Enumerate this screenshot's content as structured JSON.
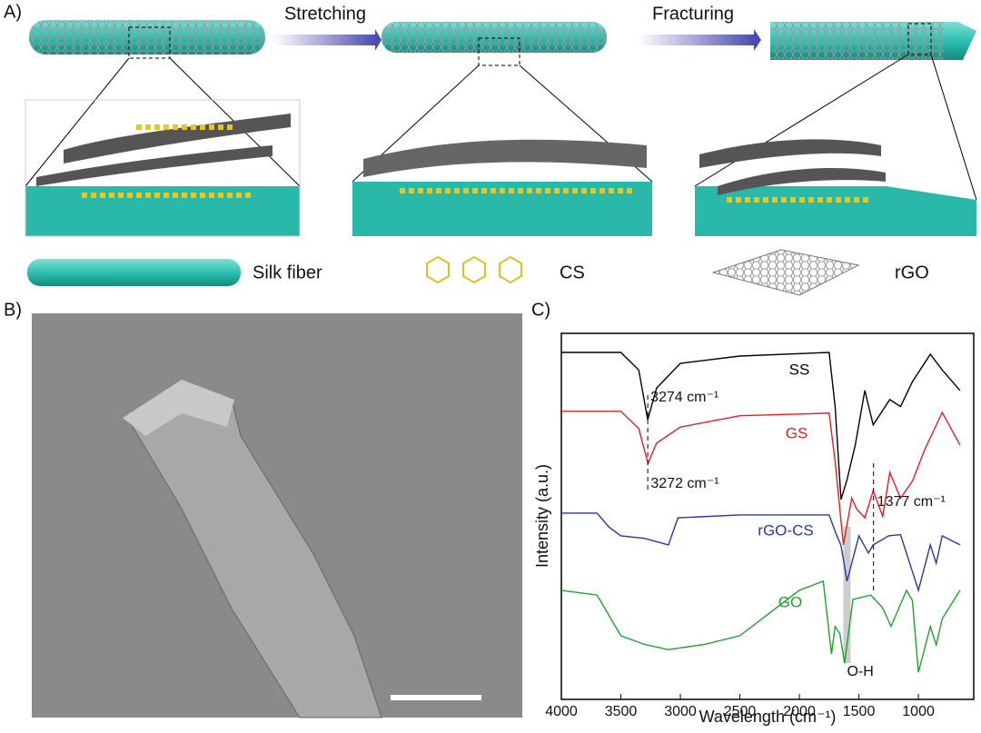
{
  "panel_a": {
    "label": "A)",
    "step_1": "Stretching",
    "step_2": "Fracturing",
    "legend_1": "Silk fiber",
    "legend_2": "CS",
    "legend_3": "rGO"
  },
  "panel_b": {
    "label": "B)"
  },
  "chart_data": {
    "type": "line",
    "panel_label": "C)",
    "x_label": "Wavelength (cm⁻¹)",
    "y_label": "Intensity (a.u.)",
    "xlim": [
      4000,
      535
    ],
    "ylim": [
      0,
      100
    ],
    "xticks": [
      4000,
      3500,
      3000,
      2500,
      2000,
      1500,
      1000
    ],
    "series": [
      {
        "name": "SS",
        "color": "#000000",
        "x": [
          4000,
          3500,
          3350,
          3274,
          3200,
          3000,
          2500,
          1750,
          1700,
          1650,
          1600,
          1530,
          1450,
          1380,
          1240,
          1150,
          1050,
          900,
          800,
          650
        ],
        "values": [
          94.8,
          94.8,
          90,
          76.4,
          85,
          91.8,
          93.8,
          94.8,
          80,
          54.6,
          60,
          69.5,
          84.4,
          75,
          81.9,
          80,
          86.8,
          94.3,
          90,
          84.4
        ]
      },
      {
        "name": "GS",
        "color": "#e02020",
        "x": [
          4000,
          3500,
          3350,
          3272,
          3200,
          3000,
          2500,
          1750,
          1700,
          1630,
          1560,
          1520,
          1450,
          1380,
          1300,
          1240,
          1150,
          1050,
          950,
          800,
          650
        ],
        "values": [
          78.7,
          78.7,
          74,
          64.5,
          70,
          74.4,
          77.5,
          78.2,
          65,
          42.2,
          55,
          52.1,
          49.6,
          57,
          50,
          62,
          55,
          59.6,
          68,
          78.4,
          69.5
        ]
      },
      {
        "name": "rGO-CS",
        "color": "#2838a0",
        "x": [
          4000,
          3700,
          3600,
          3500,
          3300,
          3100,
          3020,
          2500,
          1750,
          1700,
          1650,
          1600,
          1500,
          1420,
          1380,
          1250,
          1150,
          1000,
          900,
          850,
          800,
          650
        ],
        "values": [
          50.9,
          50.9,
          47.1,
          44.7,
          44,
          42.2,
          49.6,
          50.4,
          50.4,
          45.9,
          42,
          32.3,
          44.7,
          40,
          42.2,
          44.7,
          45,
          29.8,
          42.2,
          37.2,
          44.7,
          42.2
        ]
      },
      {
        "name": "GO",
        "color": "#20a030",
        "x": [
          4000,
          3700,
          3500,
          3300,
          3100,
          2800,
          2500,
          2000,
          1800,
          1730,
          1700,
          1660,
          1620,
          1550,
          1400,
          1300,
          1230,
          1100,
          1050,
          1000,
          900,
          850,
          800,
          650
        ],
        "values": [
          29.8,
          28.5,
          17.4,
          15,
          13.6,
          15,
          17.4,
          29.8,
          32.3,
          12.4,
          19.9,
          18,
          9.9,
          27.3,
          28.5,
          25,
          19.9,
          29.8,
          27,
          7.4,
          19.9,
          14.9,
          22,
          29.8
        ]
      }
    ],
    "annotations": [
      {
        "x": 3274,
        "text": "3274 cm⁻¹"
      },
      {
        "x": 3272,
        "text": "3272 cm⁻¹"
      },
      {
        "x": 1377,
        "text": "1377 cm⁻¹"
      },
      {
        "x": 1600,
        "text": "O-H"
      }
    ]
  }
}
